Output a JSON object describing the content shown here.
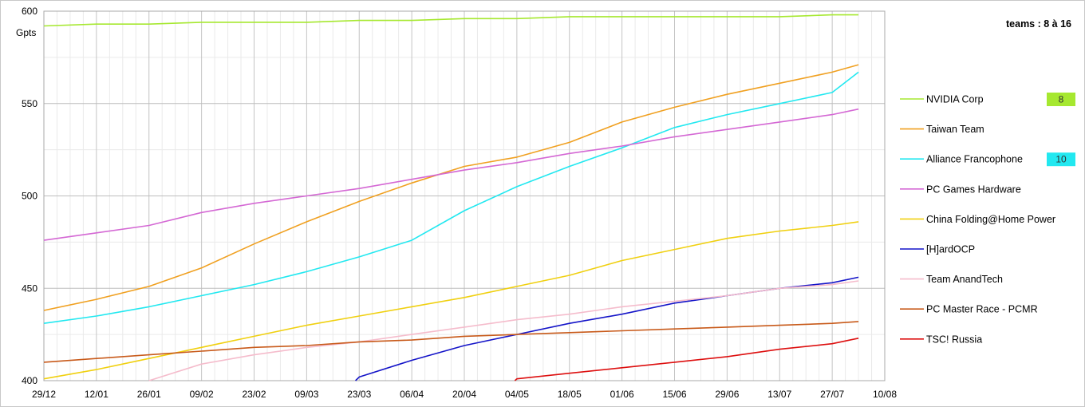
{
  "chart_data": {
    "type": "line",
    "title": "",
    "xlabel": "",
    "ylabel": "Gpts",
    "annotation": "teams : 8 à 16",
    "ylim": [
      400,
      600
    ],
    "yticks": [
      "400",
      "450",
      "500",
      "550",
      "600"
    ],
    "xticks": [
      "29/12",
      "12/01",
      "26/01",
      "09/02",
      "23/02",
      "09/03",
      "23/03",
      "06/04",
      "20/04",
      "04/05",
      "18/05",
      "01/06",
      "15/06",
      "29/06",
      "13/07",
      "27/07",
      "10/08"
    ],
    "grid": true,
    "legend_position": "right",
    "x": [
      "29/12",
      "12/01",
      "26/01",
      "09/02",
      "23/02",
      "09/03",
      "23/03",
      "06/04",
      "20/04",
      "04/05",
      "18/05",
      "01/06",
      "15/06",
      "29/06",
      "13/07",
      "27/07",
      "03/08"
    ],
    "series": [
      {
        "name": "NVIDIA Corp",
        "color": "#a6e830",
        "badge": "8",
        "values": [
          592,
          593,
          593,
          594,
          594,
          594,
          595,
          595,
          596,
          596,
          597,
          597,
          597,
          597,
          597,
          598,
          598
        ]
      },
      {
        "name": "Taiwan Team",
        "color": "#f0a020",
        "badge": "",
        "values": [
          438,
          444,
          451,
          461,
          474,
          486,
          497,
          507,
          516,
          521,
          529,
          540,
          548,
          555,
          561,
          567,
          571
        ]
      },
      {
        "name": "Alliance Francophone",
        "color": "#22e8f0",
        "badge": "10",
        "values": [
          431,
          435,
          440,
          446,
          452,
          459,
          467,
          476,
          492,
          505,
          516,
          526,
          537,
          544,
          550,
          556,
          567
        ]
      },
      {
        "name": "PC Games Hardware",
        "color": "#d468d4",
        "badge": "",
        "values": [
          476,
          480,
          484,
          491,
          496,
          500,
          504,
          509,
          514,
          518,
          523,
          527,
          532,
          536,
          540,
          544,
          547
        ]
      },
      {
        "name": "China Folding@Home Power",
        "color": "#f0d010",
        "badge": "",
        "values": [
          401,
          406,
          412,
          418,
          424,
          430,
          435,
          440,
          445,
          451,
          457,
          465,
          471,
          477,
          481,
          484,
          486
        ]
      },
      {
        "name": "[H]ardOCP",
        "color": "#1414c8",
        "badge": "",
        "values": [
          null,
          null,
          null,
          null,
          null,
          null,
          402,
          411,
          419,
          425,
          431,
          436,
          442,
          446,
          450,
          453,
          456
        ]
      },
      {
        "name": "Team AnandTech",
        "color": "#f5bccc",
        "badge": "",
        "values": [
          null,
          null,
          400,
          409,
          414,
          418,
          421,
          425,
          429,
          433,
          436,
          440,
          443,
          446,
          450,
          452,
          454
        ]
      },
      {
        "name": "PC Master Race - PCMR",
        "color": "#c85a1a",
        "badge": "",
        "values": [
          410,
          412,
          414,
          416,
          418,
          419,
          421,
          422,
          424,
          425,
          426,
          427,
          428,
          429,
          430,
          431,
          432
        ]
      },
      {
        "name": "TSC! Russia",
        "color": "#dd0f0f",
        "badge": "",
        "values": [
          null,
          null,
          null,
          null,
          null,
          null,
          null,
          null,
          null,
          401,
          404,
          407,
          410,
          413,
          417,
          420,
          423
        ]
      }
    ]
  }
}
